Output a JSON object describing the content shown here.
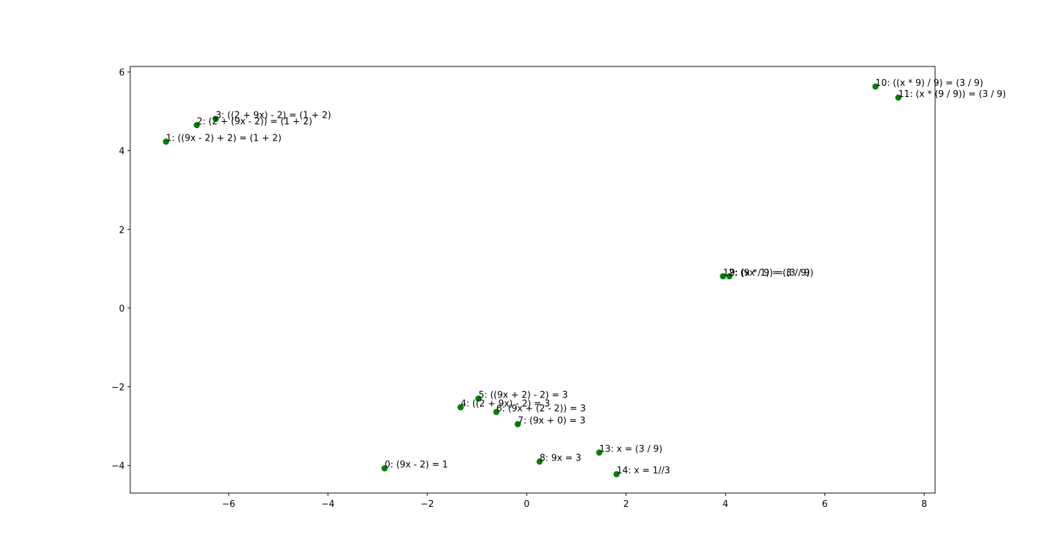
{
  "chart_data": {
    "type": "scatter",
    "title": "",
    "xlabel": "",
    "ylabel": "",
    "xlim": [
      -7.98,
      8.22
    ],
    "ylim": [
      -4.7,
      6.14
    ],
    "xticks": [
      -6,
      -4,
      -2,
      0,
      2,
      4,
      6,
      8
    ],
    "yticks": [
      -4,
      -2,
      0,
      2,
      4,
      6
    ],
    "grid": false,
    "point_color": "#008000",
    "points": [
      {
        "x": -2.86,
        "y": -4.07,
        "label": "0: (9x - 2) = 1"
      },
      {
        "x": -7.26,
        "y": 4.23,
        "label": "1: ((9x - 2) + 2) = (1 + 2)"
      },
      {
        "x": -6.64,
        "y": 4.65,
        "label": "2: (2 + (9x - 2)) = (1 + 2)"
      },
      {
        "x": -6.26,
        "y": 4.81,
        "label": "3: ((2 + 9x) - 2) = (1 + 2)"
      },
      {
        "x": -1.33,
        "y": -2.52,
        "label": "4: ((2 + 9x) - 2) = 3"
      },
      {
        "x": -0.97,
        "y": -2.3,
        "label": "5: ((9x + 2) - 2) = 3"
      },
      {
        "x": -0.61,
        "y": -2.64,
        "label": "6: (9x + (2 - 2)) = 3"
      },
      {
        "x": -0.18,
        "y": -2.95,
        "label": "7: (9x + 0) = 3"
      },
      {
        "x": 0.26,
        "y": -3.9,
        "label": "8: 9x = 3"
      },
      {
        "x": 4.08,
        "y": 0.81,
        "label": "9: (x * 1) = (3 / 9)"
      },
      {
        "x": 7.02,
        "y": 5.63,
        "label": "10: ((x * 9) / 9) = (3 / 9)"
      },
      {
        "x": 7.48,
        "y": 5.35,
        "label": "11: (x * (9 / 9)) = (3 / 9)"
      },
      {
        "x": 3.95,
        "y": 0.81,
        "label": "12: (9x / 9) = (3 / 9)"
      },
      {
        "x": 1.46,
        "y": -3.67,
        "label": "13: x = (3 / 9)"
      },
      {
        "x": 1.81,
        "y": -4.22,
        "label": "14: x = 1//3"
      }
    ]
  }
}
